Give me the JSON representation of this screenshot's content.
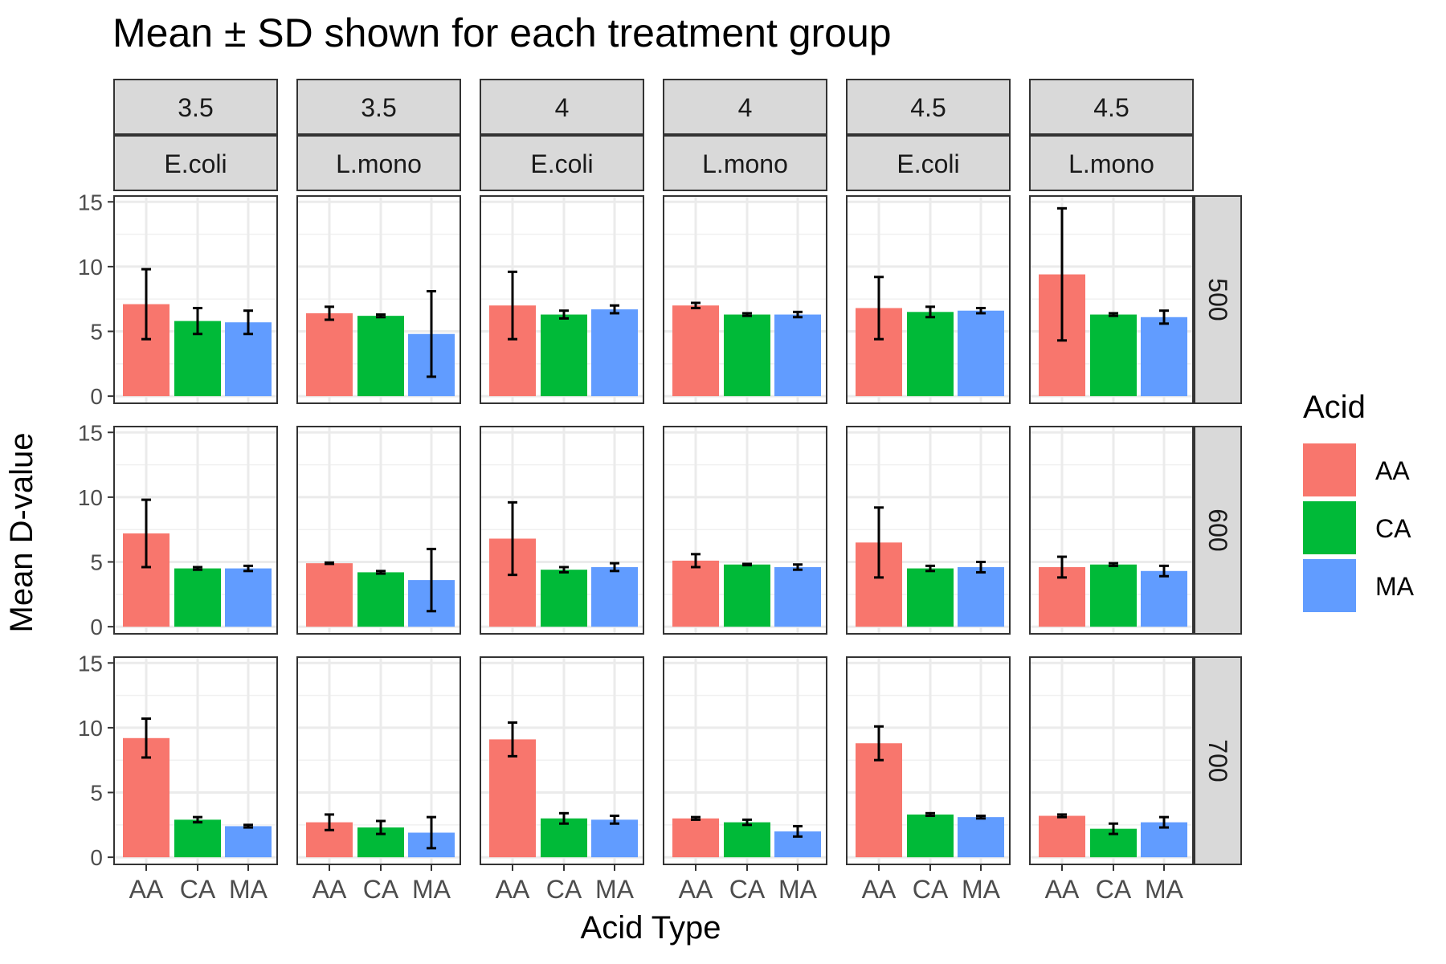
{
  "chart_data": {
    "type": "bar",
    "title": "Mean ± SD shown for each treatment group",
    "xlabel": "Acid Type",
    "ylabel": "Mean D-value",
    "categories": [
      "AA",
      "CA",
      "MA"
    ],
    "ylim": [
      0,
      15
    ],
    "yticks": [
      0,
      5,
      10,
      15
    ],
    "grid": true,
    "column_facets": [
      {
        "top": "3.5",
        "bottom": "E.coli"
      },
      {
        "top": "3.5",
        "bottom": "L.mono"
      },
      {
        "top": "4",
        "bottom": "E.coli"
      },
      {
        "top": "4",
        "bottom": "L.mono"
      },
      {
        "top": "4.5",
        "bottom": "E.coli"
      },
      {
        "top": "4.5",
        "bottom": "L.mono"
      }
    ],
    "row_facets": [
      "500",
      "600",
      "700"
    ],
    "legend": {
      "title": "Acid",
      "position": "right",
      "items": [
        {
          "label": "AA",
          "color": "#F8766D"
        },
        {
          "label": "CA",
          "color": "#00BA38"
        },
        {
          "label": "MA",
          "color": "#619CFF"
        }
      ]
    },
    "panels": [
      [
        {
          "values": [
            7.1,
            5.8,
            5.7
          ],
          "sd": [
            2.7,
            1.0,
            0.9
          ]
        },
        {
          "values": [
            6.4,
            6.2,
            4.8
          ],
          "sd": [
            0.5,
            0.1,
            3.3
          ]
        },
        {
          "values": [
            7.0,
            6.3,
            6.7
          ],
          "sd": [
            2.6,
            0.3,
            0.3
          ]
        },
        {
          "values": [
            7.0,
            6.3,
            6.3
          ],
          "sd": [
            0.2,
            0.1,
            0.2
          ]
        },
        {
          "values": [
            6.8,
            6.5,
            6.6
          ],
          "sd": [
            2.4,
            0.4,
            0.2
          ]
        },
        {
          "values": [
            9.4,
            6.3,
            6.1
          ],
          "sd": [
            5.1,
            0.1,
            0.5
          ]
        }
      ],
      [
        {
          "values": [
            7.2,
            4.5,
            4.5
          ],
          "sd": [
            2.6,
            0.1,
            0.2
          ]
        },
        {
          "values": [
            4.9,
            4.2,
            3.6
          ],
          "sd": [
            0.05,
            0.1,
            2.4
          ]
        },
        {
          "values": [
            6.8,
            4.4,
            4.6
          ],
          "sd": [
            2.8,
            0.2,
            0.3
          ]
        },
        {
          "values": [
            5.1,
            4.8,
            4.6
          ],
          "sd": [
            0.5,
            0.05,
            0.2
          ]
        },
        {
          "values": [
            6.5,
            4.5,
            4.6
          ],
          "sd": [
            2.7,
            0.2,
            0.4
          ]
        },
        {
          "values": [
            4.6,
            4.8,
            4.3
          ],
          "sd": [
            0.8,
            0.1,
            0.4
          ]
        }
      ],
      [
        {
          "values": [
            9.2,
            2.9,
            2.4
          ],
          "sd": [
            1.5,
            0.2,
            0.1
          ]
        },
        {
          "values": [
            2.7,
            2.3,
            1.9
          ],
          "sd": [
            0.6,
            0.5,
            1.2
          ]
        },
        {
          "values": [
            9.1,
            3.0,
            2.9
          ],
          "sd": [
            1.3,
            0.4,
            0.3
          ]
        },
        {
          "values": [
            3.0,
            2.7,
            2.0
          ],
          "sd": [
            0.1,
            0.2,
            0.4
          ]
        },
        {
          "values": [
            8.8,
            3.3,
            3.1
          ],
          "sd": [
            1.3,
            0.1,
            0.1
          ]
        },
        {
          "values": [
            3.2,
            2.2,
            2.7
          ],
          "sd": [
            0.1,
            0.4,
            0.4
          ]
        }
      ]
    ]
  }
}
